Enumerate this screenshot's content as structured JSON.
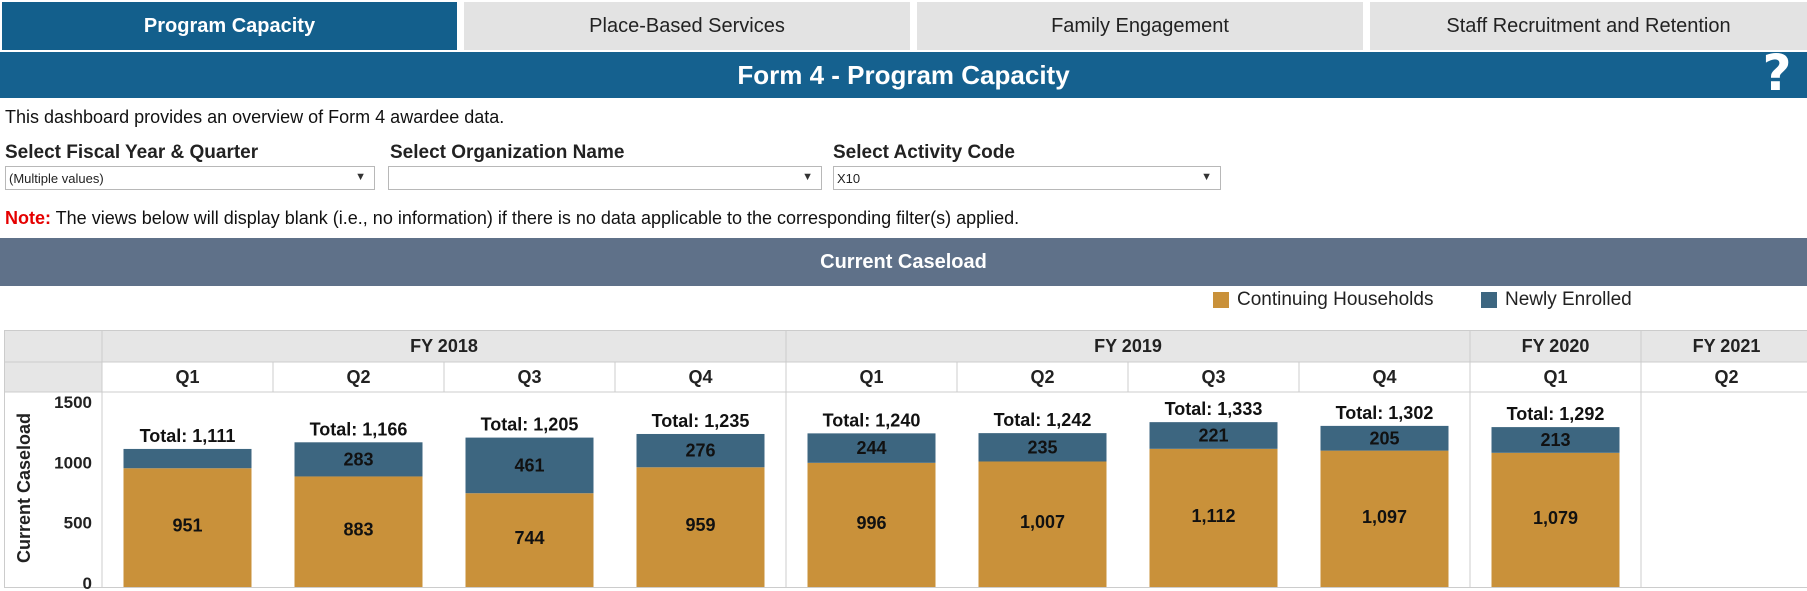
{
  "tabs": [
    {
      "label": "Program Capacity",
      "active": true
    },
    {
      "label": "Place-Based Services",
      "active": false
    },
    {
      "label": "Family Engagement",
      "active": false
    },
    {
      "label": "Staff Recruitment and Retention",
      "active": false
    }
  ],
  "header": {
    "title": "Form 4 - Program Capacity",
    "help_icon": "question-mark-icon"
  },
  "description": "This dashboard provides an overview of Form 4 awardee data.",
  "filters": {
    "fiscal_year": {
      "label": "Select Fiscal Year & Quarter",
      "value": "(Multiple values)"
    },
    "organization": {
      "label": "Select Organization Name",
      "value": ""
    },
    "activity_code": {
      "label": "Select Activity Code",
      "value": "X10"
    }
  },
  "note": {
    "label": "Note:",
    "text": " The views below will display blank (i.e., no information) if there is no data applicable to the corresponding filter(s) applied."
  },
  "section_title": "Current Caseload",
  "colors": {
    "continuing": "#c9913a",
    "newly": "#3d6680",
    "header_bg": "#e6e6e6",
    "tab_active": "#135f8c"
  },
  "chart_data": {
    "type": "bar",
    "stacked": true,
    "ylabel": "Current Caseload",
    "ylim": [
      0,
      1500
    ],
    "yticks": [
      "1500",
      "1000",
      "500",
      "0"
    ],
    "ytick_values": [
      1500,
      1000,
      500,
      0
    ],
    "legend": {
      "placement": "top-right",
      "entries": [
        "Continuing Households",
        "Newly Enrolled"
      ]
    },
    "fiscal_years": [
      {
        "label": "FY 2018",
        "quarters": [
          "Q1",
          "Q2",
          "Q3",
          "Q4"
        ]
      },
      {
        "label": "FY 2019",
        "quarters": [
          "Q1",
          "Q2",
          "Q3",
          "Q4"
        ]
      },
      {
        "label": "FY 2020",
        "quarters": [
          "Q1"
        ]
      },
      {
        "label": "FY 2021",
        "quarters": [
          "Q2"
        ]
      }
    ],
    "categories": [
      "FY 2018 Q1",
      "FY 2018 Q2",
      "FY 2018 Q3",
      "FY 2018 Q4",
      "FY 2019 Q1",
      "FY 2019 Q2",
      "FY 2019 Q3",
      "FY 2019 Q4",
      "FY 2020 Q1",
      "FY 2021 Q2"
    ],
    "series": [
      {
        "name": "Continuing Households",
        "values": [
          951,
          883,
          744,
          959,
          996,
          1007,
          1112,
          1097,
          1079,
          null
        ],
        "labels": [
          "951",
          "883",
          "744",
          "959",
          "996",
          "1,007",
          "1,112",
          "1,097",
          "1,079",
          ""
        ]
      },
      {
        "name": "Newly Enrolled",
        "values": [
          160,
          283,
          461,
          276,
          244,
          235,
          221,
          205,
          213,
          null
        ],
        "labels": [
          "",
          "283",
          "461",
          "276",
          "244",
          "235",
          "221",
          "205",
          "213",
          ""
        ]
      }
    ],
    "totals": [
      "Total: 1,111",
      "Total: 1,166",
      "Total: 1,205",
      "Total: 1,235",
      "Total: 1,240",
      "Total: 1,242",
      "Total: 1,333",
      "Total: 1,302",
      "Total: 1,292",
      ""
    ]
  }
}
